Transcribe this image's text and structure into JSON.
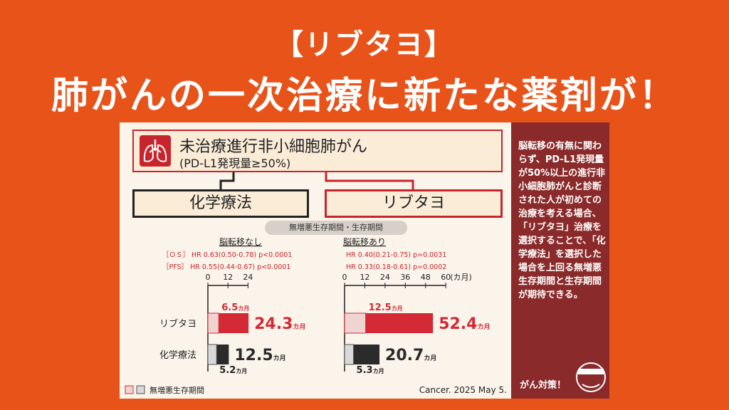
{
  "title_line1": "【リブタヨ】",
  "title_line2": "肺がんの一次治療に新たな薬剤が！",
  "card": {
    "header_title": "未治療進行非小細胞肺がん",
    "header_sub": "(PD-L1発現量≥50%)",
    "arm_chemo": "化学療法",
    "arm_libtayo": "リブタヨ",
    "pill": "無増悪生存期間・生存期間",
    "legend_pfs": "無増悪生存期間",
    "citation": "Cancer. 2025 May 5."
  },
  "side": {
    "text": "脳転移の有無に関わらず、PD-L1発現量が50%以上の進行非小細胞肺がんと診断された人が初めての治療を考える場合、「リブタヨ」治療を選択することで、「化学療法」を選択した場合を上回る無増悪生存期間と生存期間が期待できる。",
    "footer": "がん対策！"
  },
  "chart_data": [
    {
      "type": "bar",
      "title": "脳転移なし",
      "stats": [
        {
          "label": "［ＯＳ］",
          "text": "HR 0.63(0.50-0.78) p<0.0001"
        },
        {
          "label": "［PFS］",
          "text": "HR 0.55(0.44-0.67) p<0.0001"
        }
      ],
      "x_ticks": [
        0,
        12,
        24
      ],
      "categories": [
        "リブタヨ",
        "化学療法"
      ],
      "series": [
        {
          "name": "無増悪生存期間",
          "values": [
            6.5,
            5.2
          ]
        },
        {
          "name": "生存期間",
          "values": [
            24.3,
            12.5
          ]
        }
      ],
      "unit": "カ月",
      "colors": {
        "libtayo": "#d42a35",
        "libtayo_pfs": "#f0d4d2",
        "chemo": "#2b2b2b",
        "chemo_pfs": "#d9d9d9"
      }
    },
    {
      "type": "bar",
      "title": "脳転移あり",
      "stats": [
        {
          "label": "",
          "text": "HR 0.40(0.21-0.75) p=0.0031"
        },
        {
          "label": "",
          "text": "HR 0.33(0.18-0.61) p=0.0002"
        }
      ],
      "x_ticks": [
        0,
        12,
        24,
        36,
        48,
        60
      ],
      "x_unit": "(カ月)",
      "categories": [
        "リブタヨ",
        "化学療法"
      ],
      "series": [
        {
          "name": "無増悪生存期間",
          "values": [
            12.5,
            5.3
          ]
        },
        {
          "name": "生存期間",
          "values": [
            52.4,
            20.7
          ]
        }
      ],
      "unit": "カ月",
      "colors": {
        "libtayo": "#d42a35",
        "libtayo_pfs": "#f0d4d2",
        "chemo": "#2b2b2b",
        "chemo_pfs": "#d9d9d9"
      }
    }
  ]
}
